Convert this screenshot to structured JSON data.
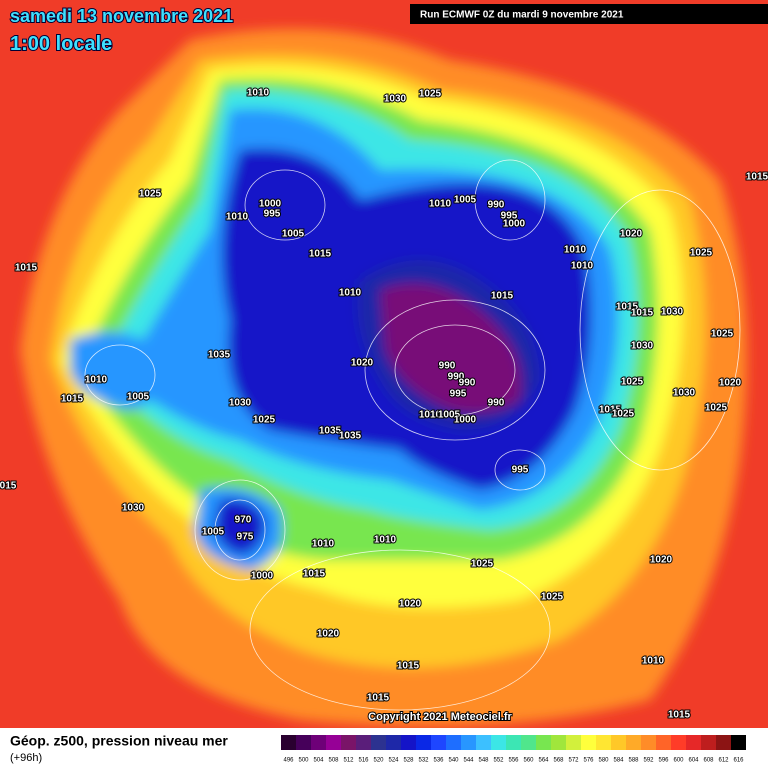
{
  "header": {
    "title": "samedi 13 novembre 2021",
    "subtitle": "1:00 locale",
    "run": "Run ECMWF 0Z du mardi 9 novembre 2021"
  },
  "isobar_labels": [
    1010,
    1030,
    1025,
    1025,
    1010,
    1000,
    995,
    1005,
    1015,
    1010,
    1015,
    1010,
    1005,
    990,
    995,
    1000,
    1010,
    1010,
    1020,
    1015,
    1025,
    1015,
    1015,
    1015,
    1030,
    1025,
    1030,
    1035,
    1020,
    990,
    990,
    990,
    995,
    990,
    1010,
    1005,
    1015,
    1030,
    1025,
    1020,
    1030,
    1025,
    1015,
    1025,
    1010,
    1005,
    1000,
    1025,
    1035,
    1035,
    995,
    "015",
    1030,
    970,
    1005,
    975,
    1010,
    1010,
    1000,
    1015,
    1025,
    1020,
    1025,
    1020,
    1020,
    1015,
    1010,
    1015,
    1015
  ],
  "footer": {
    "field": "Géop. z500, pression niveau mer",
    "lead": "(+96h)",
    "copyright": "Copyright 2021 Meteociel.fr"
  },
  "colorbar": {
    "labels": [
      496,
      500,
      504,
      508,
      512,
      516,
      520,
      524,
      528,
      532,
      536,
      540,
      544,
      548,
      552,
      556,
      560,
      564,
      568,
      572,
      576,
      580,
      584,
      588,
      592,
      596,
      600,
      604,
      608,
      612,
      616
    ],
    "colors": [
      "#2a0030",
      "#46005a",
      "#6e0078",
      "#960096",
      "#7a1468",
      "#5a1e7a",
      "#2c3290",
      "#1e28a8",
      "#1414c8",
      "#0a28e6",
      "#1e46ff",
      "#1e6eff",
      "#2896ff",
      "#3cc0ff",
      "#3ce6e6",
      "#3ce6b4",
      "#50e68c",
      "#78e650",
      "#a0e63c",
      "#d2f03c",
      "#ffff3c",
      "#ffe632",
      "#ffc828",
      "#ffaa28",
      "#ff8c28",
      "#ff6428",
      "#ff3c28",
      "#e62828",
      "#be1e1e",
      "#8c1414",
      "#000000"
    ]
  }
}
